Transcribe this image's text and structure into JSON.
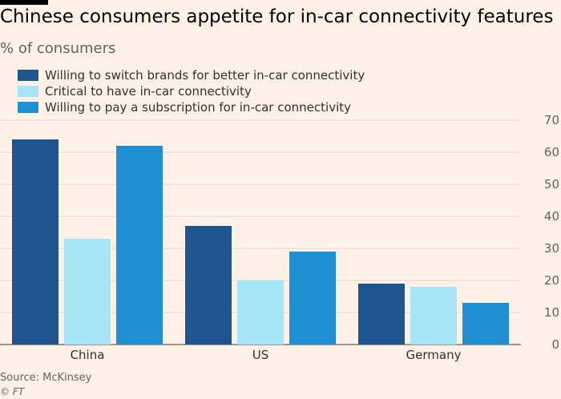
{
  "header": {
    "title": "Chinese consumers appetite for in-car connectivity features",
    "subtitle": "% of consumers"
  },
  "footer": {
    "source": "Source: McKinsey",
    "credit": "© FT"
  },
  "chart_data": {
    "type": "bar",
    "categories": [
      "China",
      "US",
      "Germany"
    ],
    "series": [
      {
        "name": "Willing to switch brands for better in-car connectivity",
        "color": "#1e558c",
        "values": [
          64,
          37,
          19
        ]
      },
      {
        "name": "Critical to have in-car connectivity",
        "color": "#a6e5f5",
        "values": [
          33,
          20,
          18
        ]
      },
      {
        "name": "Willing to pay a subscription for in-car connectivity",
        "color": "#1e8fd2",
        "values": [
          62,
          29,
          13
        ]
      }
    ],
    "ylim": [
      0,
      70
    ],
    "yticks": [
      0,
      10,
      20,
      30,
      40,
      50,
      60,
      70
    ],
    "grid": true,
    "y_axis_side": "right",
    "legend_position": "top-left"
  }
}
